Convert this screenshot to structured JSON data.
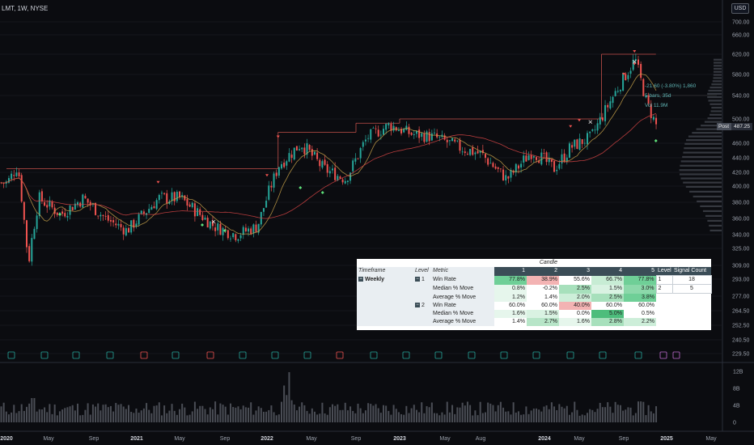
{
  "header": {
    "symbol": "LMT, 1W, NYSE",
    "currency": "USD"
  },
  "price_axis": [
    "700.00",
    "660.00",
    "620.00",
    "580.00",
    "540.00",
    "500.00",
    "460.00",
    "440.00",
    "420.00",
    "400.00",
    "380.00",
    "360.00",
    "340.00",
    "325.00",
    "309.00",
    "293.00",
    "277.00",
    "264.50",
    "252.50",
    "240.50",
    "229.50"
  ],
  "last_price_tag": {
    "label": "Post",
    "value": "487.25"
  },
  "time_axis": [
    "2020",
    "May",
    "Sep",
    "2021",
    "May",
    "Sep",
    "2022",
    "May",
    "Sep",
    "2023",
    "May",
    "Aug",
    "2024",
    "May",
    "Sep",
    "2025",
    "May"
  ],
  "volume_axis": [
    "12B",
    "8B",
    "4B",
    "0"
  ],
  "measure_annotation": [
    "-21.60 (-3.80%) 1,860",
    "5 bars, 35d",
    "Vol 11.9M"
  ],
  "colors": {
    "up": "#26a69a",
    "down": "#ef5350",
    "background": "#0b0c10",
    "ma_fast": "#c8a24a",
    "ma_slow": "#d64545",
    "level_line": "#c4504a"
  },
  "chart_data": {
    "type": "candlestick",
    "title": "LMT, 1W, NYSE",
    "ylim": [
      229.5,
      700
    ],
    "x_range": [
      "2020",
      "2025 May"
    ],
    "price_series_approx": [
      {
        "date": "2020-01",
        "close": 405
      },
      {
        "date": "2020-02",
        "close": 430
      },
      {
        "date": "2020-03",
        "close": 310
      },
      {
        "date": "2020-04",
        "close": 385
      },
      {
        "date": "2020-06",
        "close": 365
      },
      {
        "date": "2020-08",
        "close": 385
      },
      {
        "date": "2020-10",
        "close": 360
      },
      {
        "date": "2020-12",
        "close": 345
      },
      {
        "date": "2021-03",
        "close": 385
      },
      {
        "date": "2021-05",
        "close": 385
      },
      {
        "date": "2021-08",
        "close": 350
      },
      {
        "date": "2021-10",
        "close": 340
      },
      {
        "date": "2021-12",
        "close": 350
      },
      {
        "date": "2022-02",
        "close": 430
      },
      {
        "date": "2022-04",
        "close": 460
      },
      {
        "date": "2022-06",
        "close": 425
      },
      {
        "date": "2022-08",
        "close": 410
      },
      {
        "date": "2022-10",
        "close": 470
      },
      {
        "date": "2022-12",
        "close": 490
      },
      {
        "date": "2023-02",
        "close": 475
      },
      {
        "date": "2023-04",
        "close": 470
      },
      {
        "date": "2023-06",
        "close": 455
      },
      {
        "date": "2023-08",
        "close": 445
      },
      {
        "date": "2023-10",
        "close": 410
      },
      {
        "date": "2023-12",
        "close": 450
      },
      {
        "date": "2024-02",
        "close": 425
      },
      {
        "date": "2024-04",
        "close": 455
      },
      {
        "date": "2024-06",
        "close": 470
      },
      {
        "date": "2024-08",
        "close": 540
      },
      {
        "date": "2024-10",
        "close": 610
      },
      {
        "date": "2024-11",
        "close": 530
      },
      {
        "date": "2024-12",
        "close": 487.25
      }
    ],
    "moving_averages": [
      "fast (gold)",
      "slow (red)"
    ],
    "signals": {
      "sell_markers": 8,
      "buy_markers": 6
    }
  },
  "stats_table": {
    "group_header": "Candle",
    "columns": [
      "Timeframe",
      "Level",
      "Metric",
      "1",
      "2",
      "3",
      "4",
      "5"
    ],
    "timeframe": "Weekly",
    "rows": [
      {
        "level": "1",
        "metric": "Win Rate",
        "values": [
          "77.8%",
          "38.9%",
          "55.6%",
          "66.7%",
          "77.8%"
        ]
      },
      {
        "level": "",
        "metric": "Median % Move",
        "values": [
          "0.8%",
          "-0.2%",
          "2.5%",
          "1.5%",
          "3.0%"
        ]
      },
      {
        "level": "",
        "metric": "Average % Move",
        "values": [
          "1.2%",
          "1.4%",
          "2.0%",
          "2.5%",
          "3.8%"
        ]
      },
      {
        "level": "2",
        "metric": "Win Rate",
        "values": [
          "60.0%",
          "60.0%",
          "40.0%",
          "60.0%",
          "60.0%"
        ]
      },
      {
        "level": "",
        "metric": "Median % Move",
        "values": [
          "1.6%",
          "1.5%",
          "0.0%",
          "5.0%",
          "0.5%"
        ]
      },
      {
        "level": "",
        "metric": "Average % Move",
        "values": [
          "1.4%",
          "2.7%",
          "1.6%",
          "2.8%",
          "2.2%"
        ]
      }
    ],
    "signal_count": {
      "headers": [
        "Level",
        "Signal Count"
      ],
      "rows": [
        [
          "1",
          "18"
        ],
        [
          "2",
          "5"
        ]
      ]
    }
  }
}
